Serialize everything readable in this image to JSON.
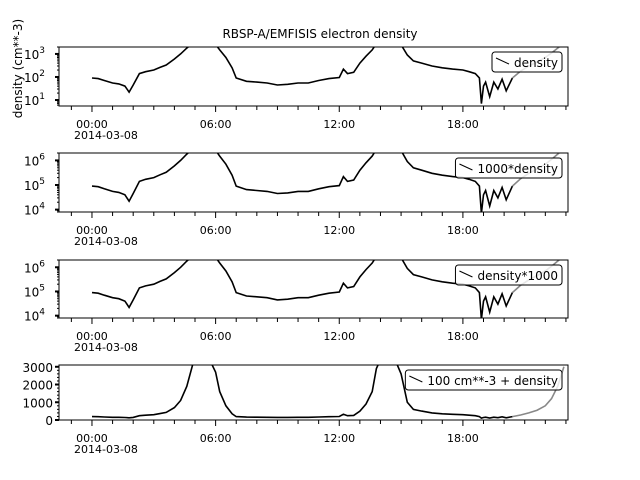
{
  "title": "RBSP-A/EMFISIS  electron density",
  "chart_data": [
    {
      "type": "line",
      "ylabel": "density (cm**-3)",
      "yscale": "log",
      "ylim": [
        5.5,
        2000
      ],
      "yticks": [
        {
          "v": 10,
          "base": "10",
          "exp": "1"
        },
        {
          "v": 100,
          "base": "10",
          "exp": "2"
        },
        {
          "v": 1000,
          "base": "10",
          "exp": "3"
        }
      ],
      "legend": "density",
      "legend_position": "top-right",
      "scale": 1,
      "offset": 0
    },
    {
      "type": "line",
      "ylabel": "",
      "yscale": "log",
      "ylim": [
        8000,
        2000000
      ],
      "yticks": [
        {
          "v": 10000,
          "base": "10",
          "exp": "4"
        },
        {
          "v": 100000,
          "base": "10",
          "exp": "5"
        },
        {
          "v": 1000000,
          "base": "10",
          "exp": "6"
        }
      ],
      "legend": "1000*density",
      "legend_position": "top-right",
      "scale": 1000,
      "offset": 0
    },
    {
      "type": "line",
      "ylabel": "",
      "yscale": "log",
      "ylim": [
        8000,
        2000000
      ],
      "yticks": [
        {
          "v": 10000,
          "base": "10",
          "exp": "4"
        },
        {
          "v": 100000,
          "base": "10",
          "exp": "5"
        },
        {
          "v": 1000000,
          "base": "10",
          "exp": "6"
        }
      ],
      "legend": "density*1000",
      "legend_position": "top-right",
      "scale": 1000,
      "offset": 0
    },
    {
      "type": "line",
      "ylabel": "",
      "yscale": "linear",
      "ylim": [
        0,
        3100
      ],
      "yticks": [
        {
          "v": 0,
          "base": "0",
          "exp": ""
        },
        {
          "v": 1000,
          "base": "1000",
          "exp": ""
        },
        {
          "v": 2000,
          "base": "2000",
          "exp": ""
        },
        {
          "v": 3000,
          "base": "3000",
          "exp": ""
        }
      ],
      "legend": "100 cm**-3 + density",
      "legend_position": "top-right",
      "scale": 1,
      "offset": 100
    }
  ],
  "xaxis": {
    "ticks": [
      "00:00",
      "06:00",
      "12:00",
      "18:00"
    ],
    "date": "2014-03-08",
    "xlim_hours": [
      -1.6,
      23.1
    ]
  },
  "density_series": {
    "hours": [
      0,
      0.3,
      0.6,
      1,
      1.3,
      1.6,
      1.8,
      2,
      2.3,
      2.6,
      3,
      3.3,
      3.6,
      4,
      4.3,
      4.6,
      5,
      5.5,
      6,
      6.2,
      6.5,
      6.8,
      7,
      7.5,
      8,
      8.5,
      9,
      9.5,
      10,
      10.5,
      11,
      11.5,
      12,
      12.2,
      12.4,
      12.7,
      13,
      13.3,
      13.6,
      13.8,
      14.2,
      14.6,
      15,
      15.3,
      15.6,
      16,
      16.5,
      17,
      17.5,
      18,
      18.3,
      18.6,
      18.8,
      18.9,
      19,
      19.1,
      19.3,
      19.5,
      19.7,
      19.9,
      20.1,
      20.4,
      20.8,
      21.2,
      21.6,
      22,
      22.3,
      22.6,
      22.9
    ],
    "values": [
      90,
      85,
      70,
      55,
      50,
      40,
      22,
      45,
      140,
      170,
      200,
      260,
      330,
      600,
      1000,
      1800,
      3500,
      3800,
      2600,
      1500,
      700,
      250,
      90,
      65,
      60,
      55,
      45,
      48,
      55,
      55,
      70,
      85,
      95,
      220,
      140,
      160,
      400,
      800,
      1500,
      2800,
      3800,
      3600,
      2500,
      900,
      500,
      400,
      300,
      250,
      220,
      200,
      170,
      140,
      90,
      7,
      40,
      60,
      14,
      60,
      30,
      80,
      25,
      90,
      180,
      300,
      450,
      700,
      1100,
      1800,
      2900
    ]
  },
  "line_color": "#000000",
  "late_segment_color": "#888888"
}
